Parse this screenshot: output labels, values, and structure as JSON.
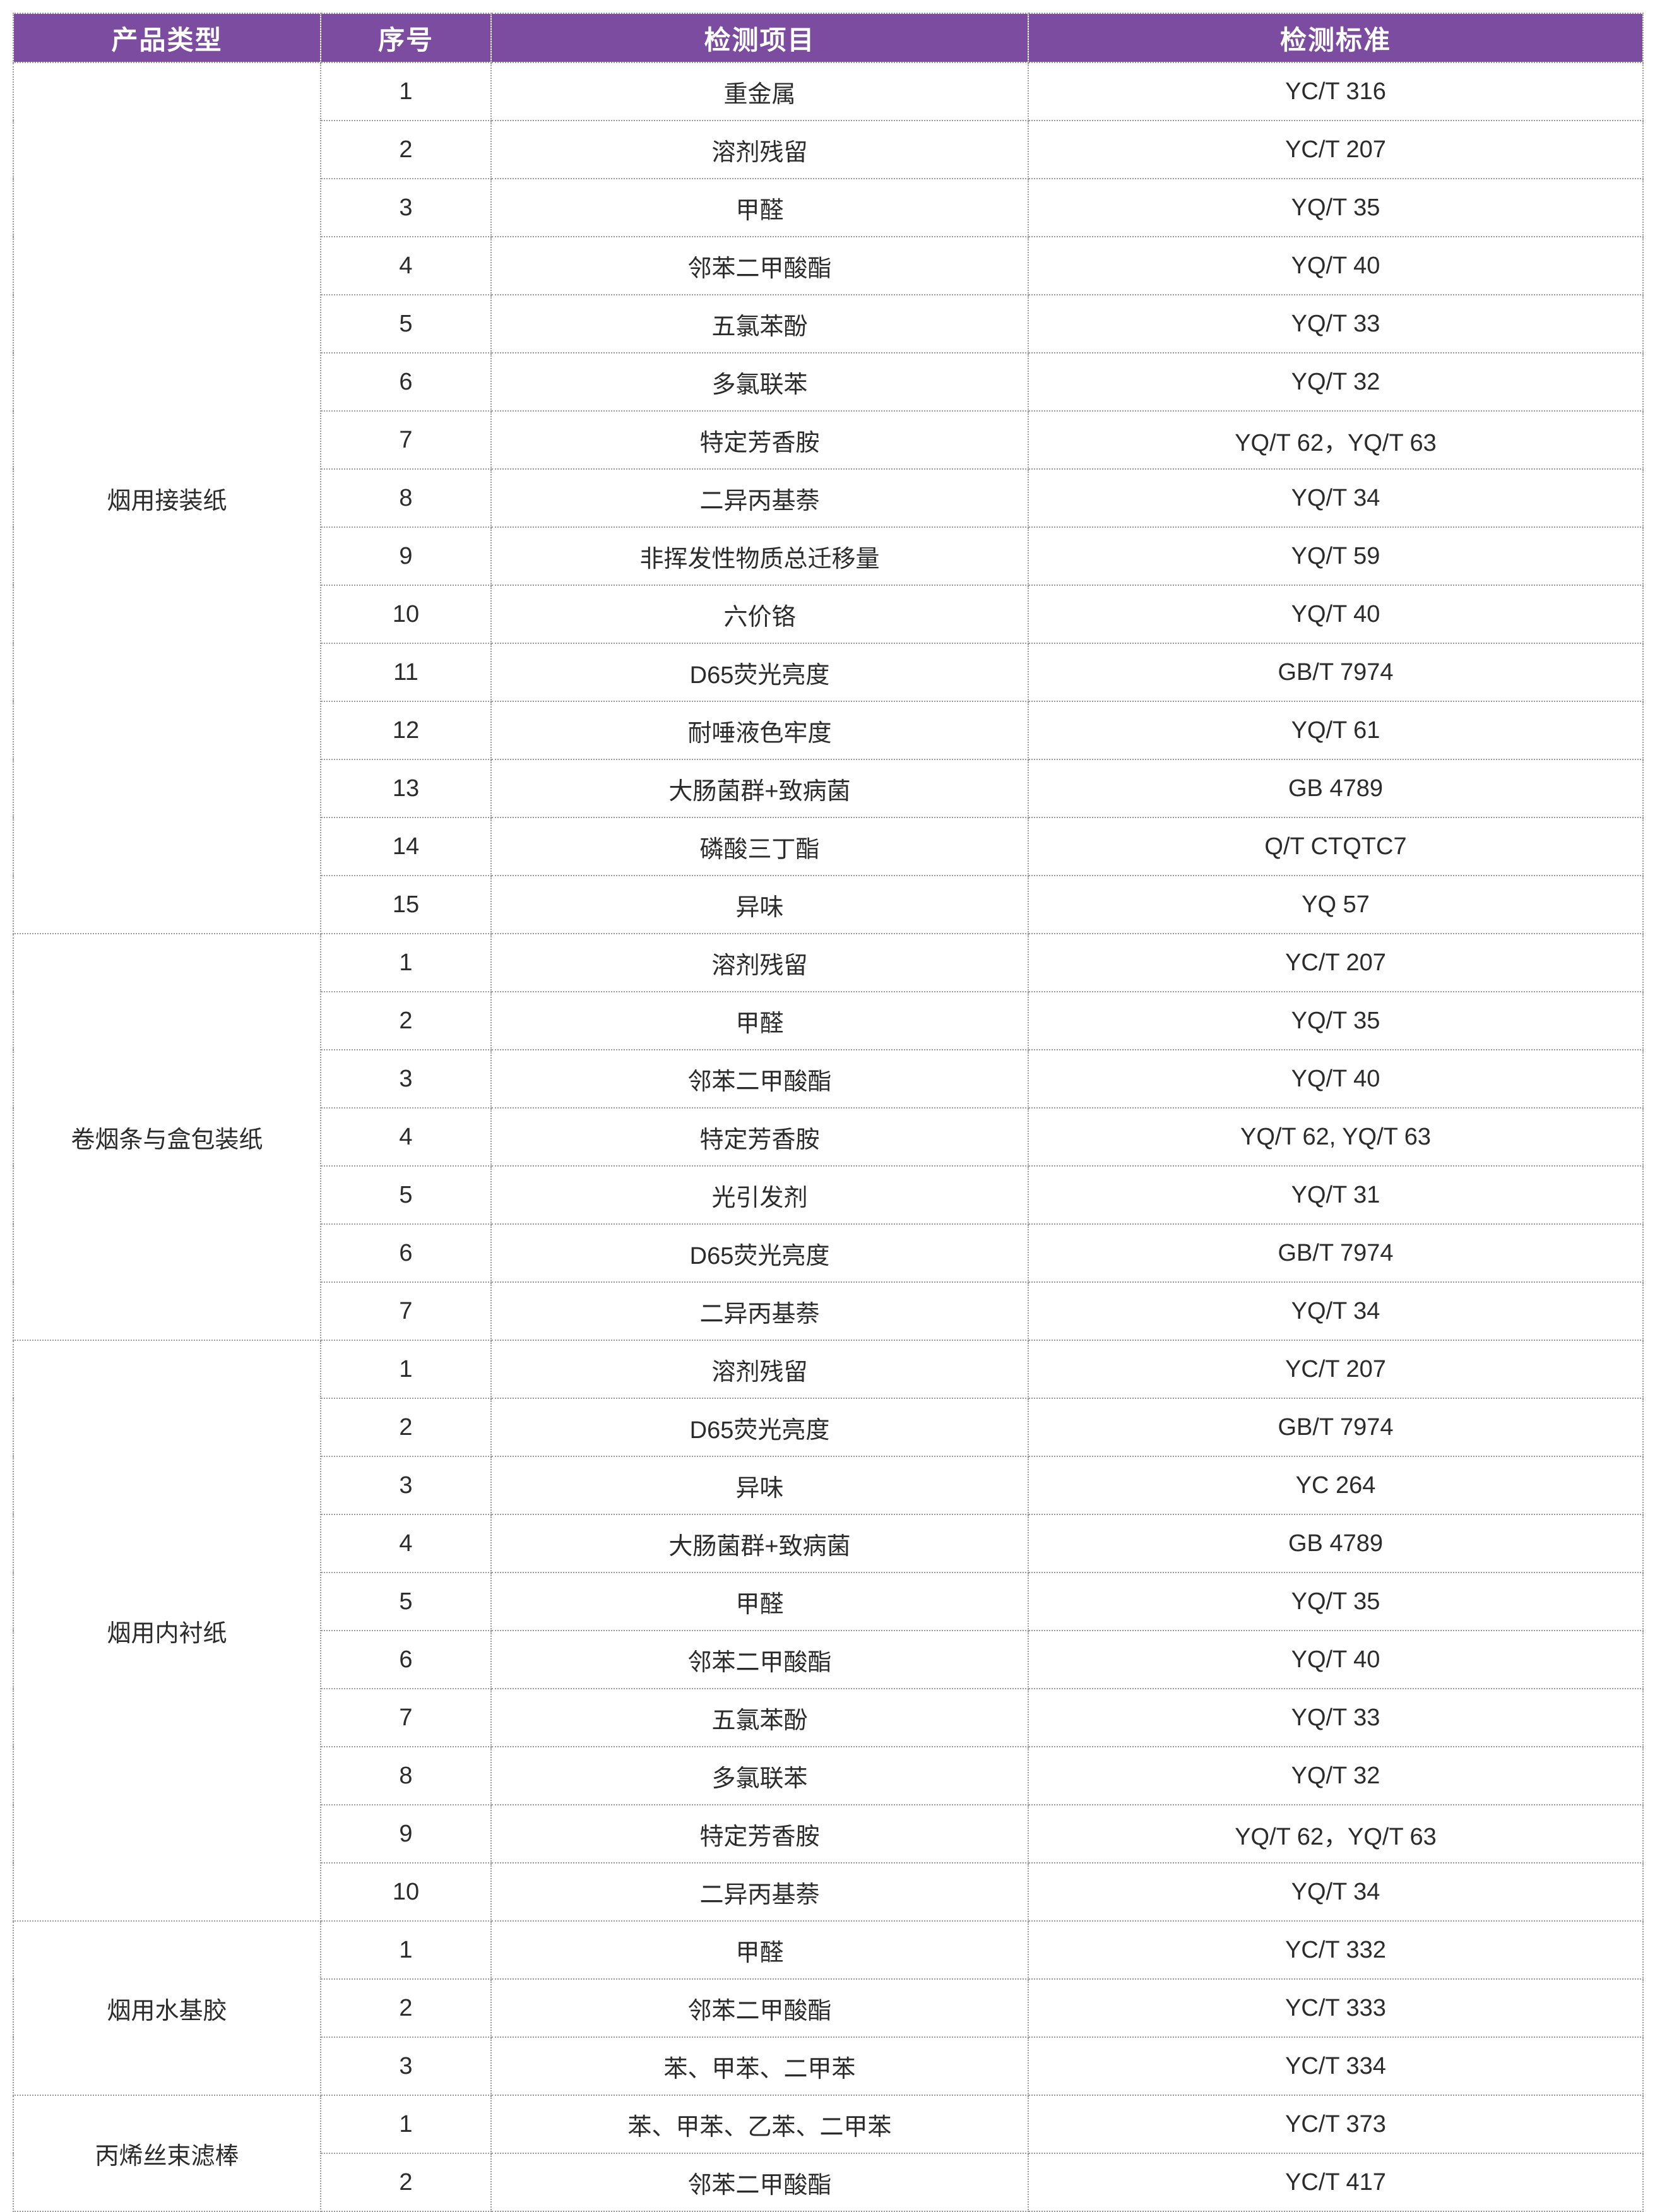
{
  "colors": {
    "header_bg": "#7b4c9f",
    "header_text": "#ffffff",
    "border": "#9a9a9a",
    "body_text": "#2b2b2b"
  },
  "table": {
    "headers": [
      "产品类型",
      "序号",
      "检测项目",
      "检测标准"
    ],
    "sections": [
      {
        "category": "烟用接装纸",
        "rows": [
          [
            "1",
            "重金属",
            "YC/T 316"
          ],
          [
            "2",
            "溶剂残留",
            "YC/T 207"
          ],
          [
            "3",
            "甲醛",
            "YQ/T 35"
          ],
          [
            "4",
            "邻苯二甲酸酯",
            "YQ/T 40"
          ],
          [
            "5",
            "五氯苯酚",
            "YQ/T 33"
          ],
          [
            "6",
            "多氯联苯",
            "YQ/T 32"
          ],
          [
            "7",
            "特定芳香胺",
            "YQ/T 62，YQ/T 63"
          ],
          [
            "8",
            "二异丙基萘",
            "YQ/T 34"
          ],
          [
            "9",
            "非挥发性物质总迁移量",
            "YQ/T 59"
          ],
          [
            "10",
            "六价铬",
            "YQ/T 40"
          ],
          [
            "11",
            "D65荧光亮度",
            "GB/T 7974"
          ],
          [
            "12",
            "耐唾液色牢度",
            "YQ/T 61"
          ],
          [
            "13",
            "大肠菌群+致病菌",
            "GB 4789"
          ],
          [
            "14",
            "磷酸三丁酯",
            "Q/T CTQTC7"
          ],
          [
            "15",
            "异味",
            "YQ 57"
          ]
        ]
      },
      {
        "category": "卷烟条与盒包装纸",
        "rows": [
          [
            "1",
            "溶剂残留",
            "YC/T 207"
          ],
          [
            "2",
            "甲醛",
            "YQ/T 35"
          ],
          [
            "3",
            "邻苯二甲酸酯",
            "YQ/T 40"
          ],
          [
            "4",
            "特定芳香胺",
            "YQ/T 62, YQ/T 63"
          ],
          [
            "5",
            "光引发剂",
            "YQ/T 31"
          ],
          [
            "6",
            "D65荧光亮度",
            "GB/T 7974"
          ],
          [
            "7",
            "二异丙基萘",
            "YQ/T 34"
          ]
        ]
      },
      {
        "category": "烟用内衬纸",
        "rows": [
          [
            "1",
            "溶剂残留",
            "YC/T 207"
          ],
          [
            "2",
            "D65荧光亮度",
            "GB/T 7974"
          ],
          [
            "3",
            "异味",
            "YC 264"
          ],
          [
            "4",
            "大肠菌群+致病菌",
            "GB 4789"
          ],
          [
            "5",
            "甲醛",
            "YQ/T 35"
          ],
          [
            "6",
            "邻苯二甲酸酯",
            "YQ/T 40"
          ],
          [
            "7",
            "五氯苯酚",
            "YQ/T 33"
          ],
          [
            "8",
            "多氯联苯",
            "YQ/T 32"
          ],
          [
            "9",
            "特定芳香胺",
            "YQ/T 62，YQ/T 63"
          ],
          [
            "10",
            "二异丙基萘",
            "YQ/T 34"
          ]
        ]
      },
      {
        "category": "烟用水基胶",
        "rows": [
          [
            "1",
            "甲醛",
            "YC/T 332"
          ],
          [
            "2",
            "邻苯二甲酸酯",
            "YC/T 333"
          ],
          [
            "3",
            "苯、甲苯、二甲苯",
            "YC/T 334"
          ]
        ]
      },
      {
        "category": "丙烯丝束滤棒",
        "rows": [
          [
            "1",
            "苯、甲苯、乙苯、二甲苯",
            "YC/T 373"
          ],
          [
            "2",
            "邻苯二甲酸酯",
            "YC/T 417"
          ]
        ]
      }
    ]
  }
}
